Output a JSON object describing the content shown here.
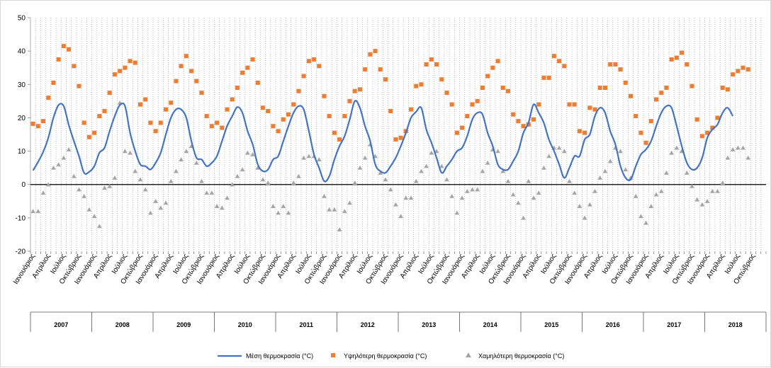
{
  "chart_data": {
    "type": "line+scatter",
    "ylim": [
      -20,
      50
    ],
    "yticks": [
      -20,
      -10,
      0,
      10,
      20,
      30,
      40,
      50
    ],
    "month_labels": [
      "Ιανουάριος",
      "Απρίλιος",
      "Ιούλιος",
      "Οκτώβριος"
    ],
    "years": [
      "2007",
      "2008",
      "2009",
      "2010",
      "2011",
      "2012",
      "2013",
      "2014",
      "2015",
      "2016",
      "2017",
      "2018"
    ],
    "start_month": "2007-01",
    "grid": "vertical dotted per month",
    "legend_position": "bottom",
    "colors": {
      "mean": "#4472c4",
      "max": "#ed7d31",
      "min": "#a5a5a5"
    },
    "series": [
      {
        "name": "Μέση θερμοκρασία (°C)",
        "type": "line",
        "values": [
          4.2,
          6.8,
          9.8,
          14,
          20,
          23.8,
          23.5,
          17.8,
          13,
          8.5,
          3.5,
          3.8,
          5.5,
          9.5,
          11,
          16,
          20.5,
          23.8,
          23.5,
          15.5,
          10,
          6,
          5.5,
          4.5,
          6.5,
          9.5,
          15,
          20,
          22.5,
          22.5,
          20,
          13,
          8,
          7.5,
          5.5,
          6.5,
          8.5,
          13,
          17.5,
          20.5,
          23.2,
          21.5,
          16,
          12,
          6,
          4,
          4.5,
          7.5,
          8.5,
          13,
          17.5,
          21.5,
          23.5,
          22.5,
          16,
          9,
          5,
          1,
          2.5,
          7.5,
          11.5,
          14.5,
          19.5,
          25,
          23,
          17.5,
          13,
          6,
          4,
          3.5,
          5.5,
          8,
          11.5,
          15.5,
          20,
          21.8,
          23,
          16.5,
          12.5,
          8,
          3.5,
          5.5,
          7.5,
          10,
          11,
          14.5,
          19.5,
          21.5,
          21,
          15.5,
          11.5,
          6,
          4.5,
          4.5,
          7,
          10,
          15.5,
          18.5,
          24,
          21.5,
          18.5,
          13.5,
          10,
          6,
          2,
          5,
          8.5,
          8.5,
          13.5,
          15,
          20.5,
          23,
          21.5,
          16,
          12,
          5.5,
          2,
          1.5,
          5.5,
          9,
          10.5,
          13,
          17.5,
          21.5,
          23.5,
          23,
          17.5,
          11.5,
          6.5,
          4.5,
          5,
          8,
          14,
          16.5,
          18,
          21.5,
          23,
          20.5
        ]
      },
      {
        "name": "Υψηλότερη θερμοκρασία (°C)",
        "type": "scatter",
        "values": [
          18.2,
          17.5,
          19,
          26,
          30.5,
          37.5,
          41.5,
          40.5,
          35.5,
          29.5,
          18.5,
          14.2,
          15.5,
          20.5,
          22,
          27.5,
          33,
          34,
          35,
          37,
          36.5,
          24,
          25.5,
          18.5,
          16,
          18.5,
          22.5,
          24.5,
          31,
          35.5,
          38.5,
          34,
          31,
          27.5,
          20.5,
          17.5,
          18.5,
          17,
          22.5,
          25.5,
          29,
          33.5,
          35,
          37.5,
          30.5,
          23,
          22,
          17.5,
          16,
          19.5,
          21,
          24,
          28,
          32.5,
          37,
          37.5,
          35.5,
          26.5,
          20.5,
          15.5,
          13.5,
          20.5,
          25,
          28,
          28.5,
          34.5,
          39,
          40,
          34.5,
          31.5,
          22,
          13.5,
          14,
          16,
          22.5,
          29.5,
          30,
          36,
          37.5,
          36,
          31.5,
          27.5,
          24,
          15.5,
          17,
          20.5,
          24,
          25,
          29,
          32.5,
          35,
          37,
          29,
          28,
          21,
          19,
          17.5,
          18,
          19.5,
          24,
          32,
          32,
          38.5,
          37,
          35.5,
          24,
          24,
          16,
          15.5,
          23,
          22.5,
          29,
          29,
          36,
          36,
          34.5,
          30.5,
          26.5,
          20.5,
          15.5,
          12.5,
          19,
          25.5,
          27.5,
          29,
          37.5,
          38,
          39.5,
          36,
          29.5,
          19.5,
          14.5,
          15.5,
          17,
          20,
          29,
          28.5,
          33,
          34,
          35,
          34.5
        ]
      },
      {
        "name": "Χαμηλότερη θερμοκρασία (°C)",
        "type": "scatter",
        "values": [
          -8,
          -8,
          -2.5,
          0,
          5,
          6,
          8,
          10.5,
          2.5,
          -1.5,
          -3.5,
          -7.5,
          -9.5,
          -12.5,
          -1,
          -0.5,
          2,
          24.5,
          10,
          9.5,
          4,
          1.5,
          -1.5,
          -8.5,
          -5,
          -7,
          -5.5,
          1,
          4,
          7.5,
          10,
          11.5,
          6.5,
          1,
          -2.5,
          -2.5,
          -6.5,
          -7,
          -4,
          0,
          2.5,
          4.5,
          9.5,
          9,
          5,
          1.5,
          0.5,
          -6.5,
          -8.5,
          -6.5,
          -8.5,
          0.5,
          2.5,
          8,
          8.5,
          8.5,
          7.5,
          -3.5,
          -7.5,
          -7.5,
          -13.5,
          -8,
          -5.5,
          0.5,
          5,
          8,
          12,
          8.5,
          3.5,
          1.5,
          -1.5,
          -6,
          -9.5,
          -4,
          -4,
          1,
          4,
          5.5,
          9.5,
          10,
          5.5,
          1.5,
          -3.5,
          -8.5,
          -4,
          -2,
          -1.5,
          -1.5,
          4,
          6.5,
          10.5,
          10,
          4,
          1,
          -3,
          -5.5,
          -10,
          1,
          -4,
          -2.5,
          5,
          8.5,
          11,
          11,
          10,
          1,
          -2.5,
          -6.5,
          -10,
          -6,
          -2,
          2,
          4,
          7,
          11,
          10,
          4.5,
          2,
          -3.5,
          -9.5,
          -11.5,
          -6.5,
          -3,
          -2,
          3.5,
          9.5,
          11,
          10,
          3.5,
          -0.5,
          -4.5,
          -6,
          -5,
          -2,
          -2,
          0.5,
          8,
          10.5,
          11,
          11,
          8
        ]
      }
    ]
  }
}
